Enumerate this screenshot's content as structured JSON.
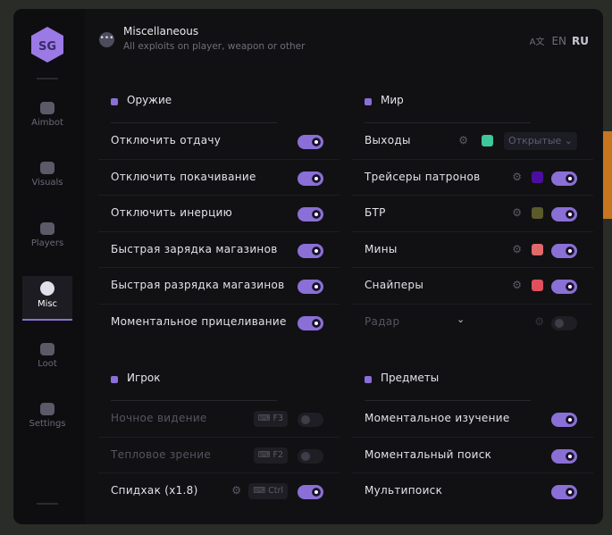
{
  "header": {
    "title": "Miscellaneous",
    "subtitle": "All exploits on player, weapon or other",
    "menu_icon": "ellipsis-icon",
    "lang_icon": "translate-icon",
    "lang_en": "EN",
    "lang_ru": "RU",
    "active_lang": "RU"
  },
  "logo": "SG",
  "sidebar": {
    "items": [
      {
        "label": "Aimbot",
        "icon": "alien-icon"
      },
      {
        "label": "Visuals",
        "icon": "vr-goggles-icon"
      },
      {
        "label": "Players",
        "icon": "users-icon"
      },
      {
        "label": "Misc",
        "icon": "ellipsis-icon",
        "active": true
      },
      {
        "label": "Loot",
        "icon": "briefcase-icon"
      },
      {
        "label": "Settings",
        "icon": "list-icon"
      }
    ]
  },
  "accent": "#8a6fd6",
  "weapon": {
    "title": "Оружие",
    "rows": [
      {
        "label": "Отключить отдачу",
        "on": true
      },
      {
        "label": "Отключить покачивание",
        "on": true
      },
      {
        "label": "Отключить инерцию",
        "on": true
      },
      {
        "label": "Быстрая зарядка магазинов",
        "on": true
      },
      {
        "label": "Быстрая разрядка магазинов",
        "on": true
      },
      {
        "label": "Моментальное прицеливание",
        "on": true
      }
    ]
  },
  "world": {
    "title": "Мир",
    "rows": [
      {
        "label": "Выходы",
        "color": "#3fc79a",
        "select": "Открытые"
      },
      {
        "label": "Трейсеры патронов",
        "color": "#4b0fa0",
        "on": true
      },
      {
        "label": "БТР",
        "color": "#5b5a2a",
        "on": true
      },
      {
        "label": "Мины",
        "color": "#e06a6a",
        "on": true
      },
      {
        "label": "Снайперы",
        "color": "#e0505c",
        "on": true
      },
      {
        "label": "Радар",
        "on": false,
        "disabled": true
      }
    ]
  },
  "player": {
    "title": "Игрок",
    "rows": [
      {
        "label": "Ночное видение",
        "key": "F3",
        "on": false,
        "disabled": true
      },
      {
        "label": "Тепловое зрение",
        "key": "F2",
        "on": false,
        "disabled": true
      },
      {
        "label": "Спидхак (x1.8)",
        "key": "Ctrl",
        "on": true
      }
    ]
  },
  "items": {
    "title": "Предметы",
    "rows": [
      {
        "label": "Моментальное изучение",
        "on": true
      },
      {
        "label": "Моментальный поиск",
        "on": true
      },
      {
        "label": "Мультипоиск",
        "on": true
      }
    ]
  }
}
